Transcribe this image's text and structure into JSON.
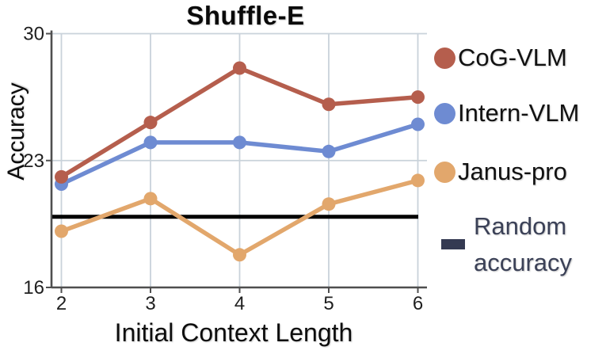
{
  "figure": {
    "background": "#ffffff"
  },
  "chart_data": {
    "type": "line",
    "title": "Shuffle-E",
    "xlabel": "Initial Context Length",
    "ylabel": "Accuracy",
    "x": [
      2,
      3,
      4,
      5,
      6
    ],
    "x_tick_labels": [
      "2",
      "3",
      "4",
      "5",
      "6"
    ],
    "y_tick_values": [
      30,
      23,
      16
    ],
    "y_tick_labels": [
      "30",
      "23",
      "16"
    ],
    "xlim": [
      2,
      6
    ],
    "ylim": [
      16,
      30
    ],
    "grid": true,
    "legend_position": "right",
    "series": [
      {
        "name": "CoG-VLM",
        "color": "#b55e4d",
        "marker": "circle",
        "values": [
          22.1,
          25.1,
          28.1,
          26.1,
          26.5
        ]
      },
      {
        "name": "Intern-VLM",
        "color": "#6e8bd2",
        "marker": "circle",
        "values": [
          21.7,
          24.0,
          24.0,
          23.5,
          25.0
        ]
      },
      {
        "name": "Janus-pro",
        "color": "#e2a76c",
        "marker": "circle",
        "values": [
          19.1,
          20.9,
          17.8,
          20.6,
          21.9
        ]
      }
    ],
    "reference_line": {
      "label": "Random accuracy",
      "value": 19.9,
      "color": "#000000"
    }
  },
  "legend": {
    "items": [
      {
        "label": "CoG-VLM",
        "marker": "dot",
        "color": "#b55e4d",
        "text_color": "#111111"
      },
      {
        "label": "Intern-VLM",
        "marker": "dot",
        "color": "#6e8bd2",
        "text_color": "#111111"
      },
      {
        "label": "Janus-pro",
        "marker": "dot",
        "color": "#e2a76c",
        "text_color": "#111111"
      },
      {
        "label": "Random accuracy",
        "marker": "dash",
        "color": "#343a52",
        "text_color": "#3b4157"
      }
    ]
  },
  "colors": {
    "gridline": "#c9d2da",
    "axis": "#4f4f4f",
    "tick_text": "#1f1f1f"
  }
}
